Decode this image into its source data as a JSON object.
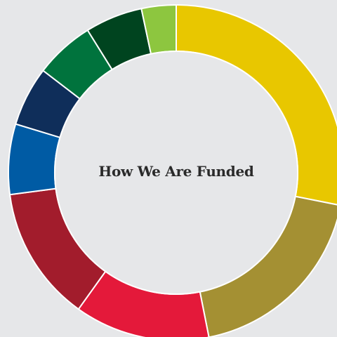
{
  "chart_data": {
    "type": "pie",
    "title": "How We Are Funded",
    "slices": [
      {
        "value": 27.0,
        "color": "#e8c700"
      },
      {
        "value": 18.0,
        "color": "#a49033"
      },
      {
        "value": 12.5,
        "color": "#e4193a"
      },
      {
        "value": 12.5,
        "color": "#a21c2c"
      },
      {
        "value": 6.5,
        "color": "#005ba4"
      },
      {
        "value": 5.5,
        "color": "#0f2e5a"
      },
      {
        "value": 5.5,
        "color": "#00733d"
      },
      {
        "value": 5.3,
        "color": "#00441f"
      },
      {
        "value": 3.2,
        "color": "#8dc63f"
      }
    ]
  }
}
